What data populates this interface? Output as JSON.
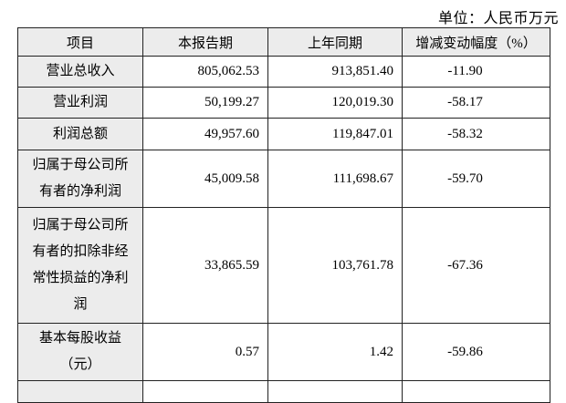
{
  "page": {
    "unit_label": "单位：人民币万元"
  },
  "table": {
    "headers": [
      "项目",
      "本报告期",
      "上年同期",
      "增减变动幅度（%）"
    ],
    "rows": [
      {
        "label": "营业总收入",
        "current": "805,062.53",
        "prior": "913,851.40",
        "change": "-11.90"
      },
      {
        "label": "营业利润",
        "current": "50,199.27",
        "prior": "120,019.30",
        "change": "-58.17"
      },
      {
        "label": "利润总额",
        "current": "49,957.60",
        "prior": "119,847.01",
        "change": "-58.32"
      },
      {
        "label": "归属于母公司所有者的净利润",
        "current": "45,009.58",
        "prior": "111,698.67",
        "change": "-59.70"
      },
      {
        "label": "归属于母公司所有者的扣除非经常性损益的净利润",
        "current": "33,865.59",
        "prior": "103,761.78",
        "change": "-67.36"
      },
      {
        "label": "基本每股收益（元）",
        "current": "0.57",
        "prior": "1.42",
        "change": "-59.86"
      },
      {
        "label": "",
        "current": "",
        "prior": "",
        "change": ""
      }
    ]
  },
  "colors": {
    "header_bg": "#ececec",
    "label_column_bg": "#ececec",
    "border": "#222222",
    "text": "#000000",
    "page_bg": "#ffffff"
  }
}
